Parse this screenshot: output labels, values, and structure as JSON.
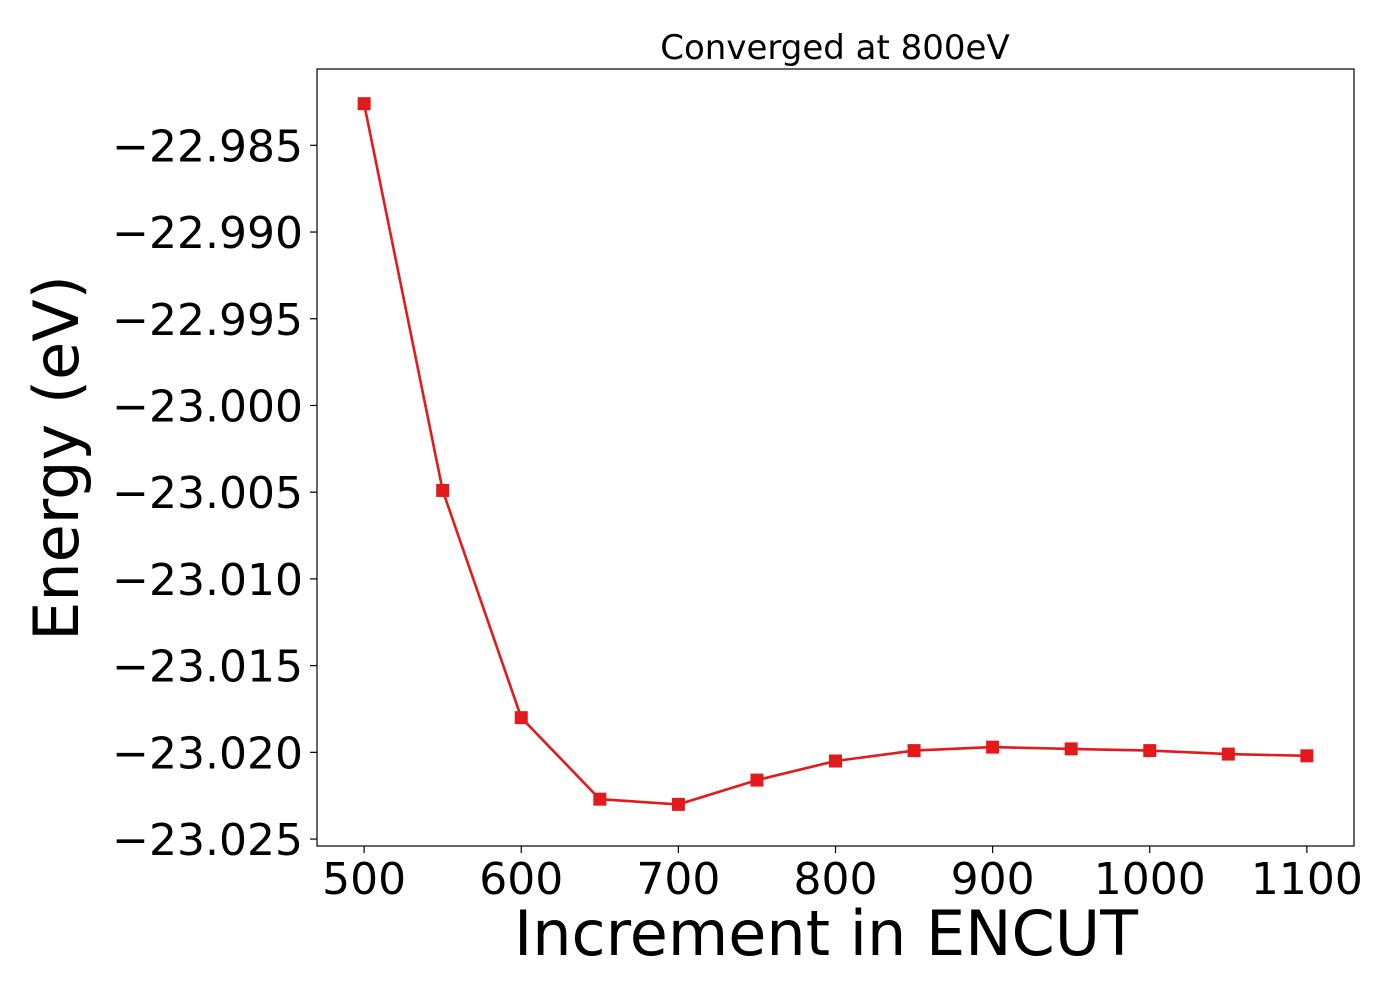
{
  "chart_data": {
    "type": "line",
    "title": "Converged at 800eV",
    "xlabel": "Increment in ENCUT",
    "ylabel": "Energy (eV)",
    "x": [
      500,
      550,
      600,
      650,
      700,
      750,
      800,
      850,
      900,
      950,
      1000,
      1050,
      1100
    ],
    "series": [
      {
        "color": "#e31a1c",
        "marker": "square",
        "values": [
          -22.9826,
          -23.0049,
          -23.018,
          -23.0227,
          -23.023,
          -23.0216,
          -23.0205,
          -23.0199,
          -23.0197,
          -23.0198,
          -23.0199,
          -23.0201,
          -23.0202
        ]
      }
    ],
    "xlim": [
      470,
      1130
    ],
    "ylim": [
      -23.0254,
      -22.9806
    ],
    "xticks": [
      500,
      600,
      700,
      800,
      900,
      1000,
      1100
    ],
    "xtick_labels": [
      "500",
      "600",
      "700",
      "800",
      "900",
      "1000",
      "1100"
    ],
    "yticks": [
      -22.985,
      -22.99,
      -22.995,
      -23.0,
      -23.005,
      -23.01,
      -23.015,
      -23.02,
      -23.025
    ],
    "ytick_labels": [
      "−22.985",
      "−22.990",
      "−22.995",
      "−23.000",
      "−23.005",
      "−23.010",
      "−23.015",
      "−23.020",
      "−23.025"
    ],
    "grid": false,
    "legend": "none"
  }
}
